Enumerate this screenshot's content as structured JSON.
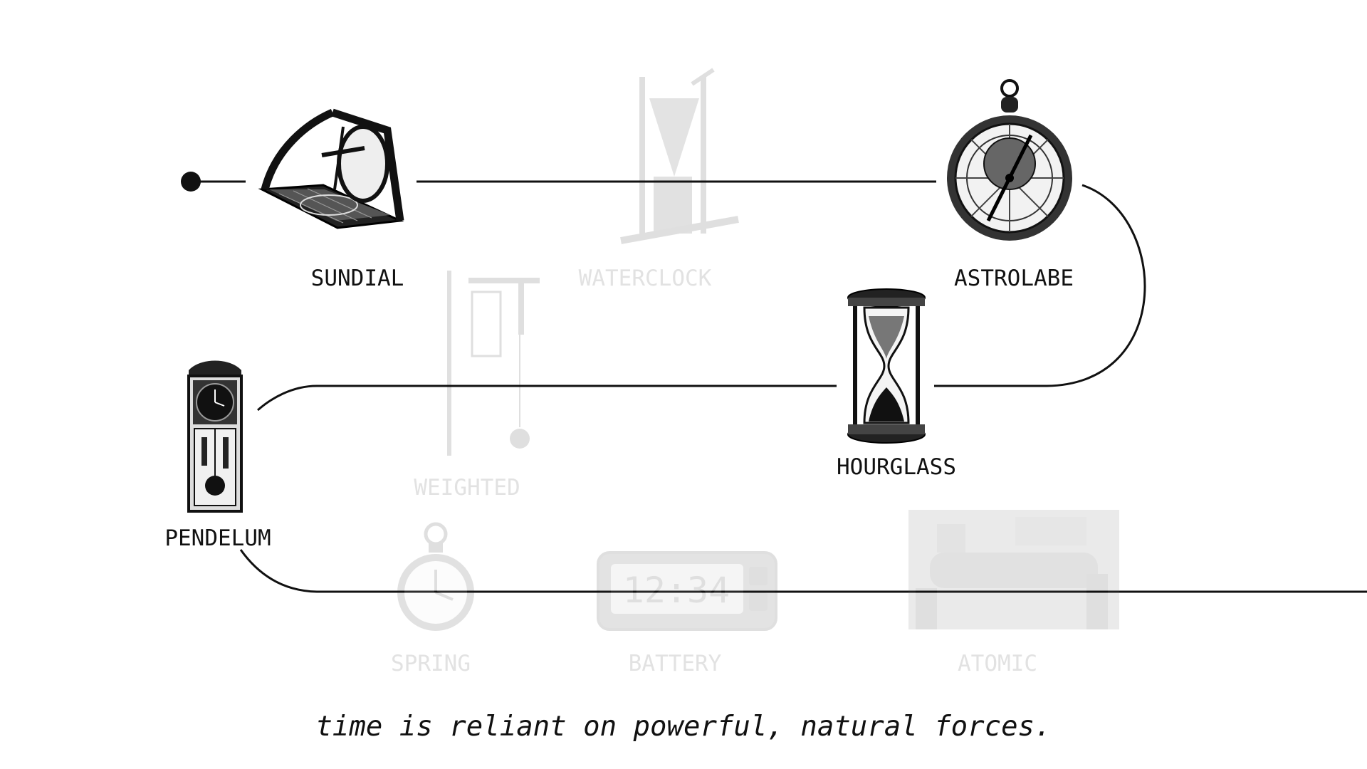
{
  "timeline": {
    "stations": [
      {
        "id": "sundial",
        "label": "SUNDIAL",
        "state": "active",
        "icon": "sundial-icon"
      },
      {
        "id": "waterclock",
        "label": "WATERCLOCK",
        "state": "faded",
        "icon": "water-clock-icon"
      },
      {
        "id": "astrolabe",
        "label": "ASTROLABE",
        "state": "active",
        "icon": "astrolabe-icon"
      },
      {
        "id": "hourglass",
        "label": "HOURGLASS",
        "state": "active",
        "icon": "hourglass-icon"
      },
      {
        "id": "weighted",
        "label": "WEIGHTED",
        "state": "faded",
        "icon": "weighted-clock-icon"
      },
      {
        "id": "pendelum",
        "label": "PENDELUM",
        "state": "active",
        "icon": "pendulum-clock-icon"
      },
      {
        "id": "spring",
        "label": "SPRING",
        "state": "faded",
        "icon": "pocket-watch-icon"
      },
      {
        "id": "battery",
        "label": "BATTERY",
        "state": "faded",
        "icon": "digital-clock-icon"
      },
      {
        "id": "atomic",
        "label": "ATOMIC",
        "state": "faded",
        "icon": "atomic-clock-photo-icon"
      }
    ],
    "line_color": "#111111",
    "faded_color": "#e2e2e2"
  },
  "caption": "time is reliant on powerful, natural forces."
}
